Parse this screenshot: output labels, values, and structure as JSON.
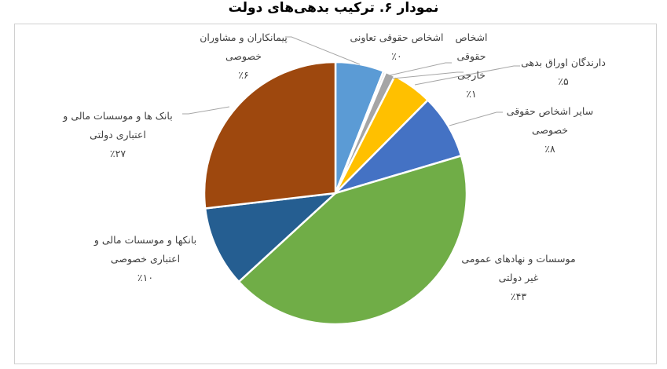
{
  "chart_data": {
    "type": "pie",
    "title": "نمودار ۶. ترکیب بدهی‌های دولت",
    "start": "top-clockwise",
    "slices": [
      {
        "lines": [
          "پیمانکاران و مشاوران",
          "خصوصی"
        ],
        "pct_label": "٪۶",
        "value": 6,
        "color": "#5B9BD5"
      },
      {
        "lines": [
          "اشخاص حقوقی تعاونی"
        ],
        "pct_label": "٪۰",
        "value": 0.3,
        "color": "#C8C8C8"
      },
      {
        "lines": [
          "اشخاص",
          "حقوقی",
          "خارجی"
        ],
        "pct_label": "٪۱",
        "value": 1.2,
        "color": "#A5A5A5"
      },
      {
        "lines": [
          "دارندگان اوراق بدهی"
        ],
        "pct_label": "٪۵",
        "value": 5,
        "color": "#FFC000"
      },
      {
        "lines": [
          "سایر اشخاص حقوقی",
          "خصوصی"
        ],
        "pct_label": "٪۸",
        "value": 8,
        "color": "#4472C4"
      },
      {
        "lines": [
          "موسسات و نهادهای عمومی",
          "غیر دولتی"
        ],
        "pct_label": "٪۴۳",
        "value": 43,
        "color": "#70AD47"
      },
      {
        "lines": [
          "بانکها و موسسات مالی و",
          "اعتباری  خصوصی"
        ],
        "pct_label": "٪۱۰",
        "value": 10,
        "color": "#255E91"
      },
      {
        "lines": [
          "بانک ها و موسسات مالی و",
          "اعتباری دولتی"
        ],
        "pct_label": "٪۲۷",
        "value": 27,
        "color": "#9E480E"
      }
    ]
  }
}
